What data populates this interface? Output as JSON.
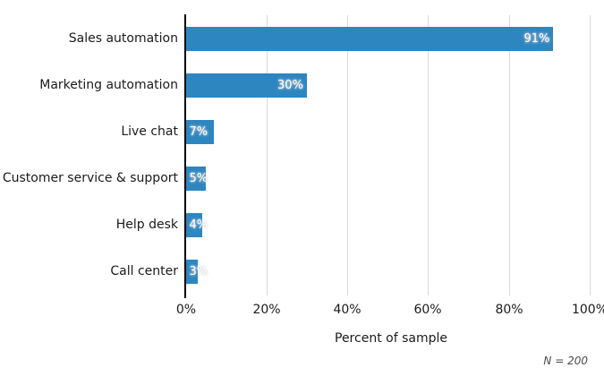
{
  "chart_data": {
    "type": "bar",
    "orientation": "horizontal",
    "title": "",
    "categories": [
      "Sales automation",
      "Marketing automation",
      "Live chat",
      "Customer service & support",
      "Help desk",
      "Call center"
    ],
    "values": [
      91,
      30,
      7,
      5,
      4,
      3
    ],
    "value_labels": [
      "91%",
      "30%",
      "7%",
      "5%",
      "4%",
      "3%"
    ],
    "xlabel": "Percent of sample",
    "ylabel": "",
    "xlim": [
      0,
      100
    ],
    "x_ticks": [
      0,
      20,
      40,
      60,
      80,
      100
    ],
    "x_tick_labels": [
      "0%",
      "20%",
      "40%",
      "60%",
      "80%",
      "100%"
    ],
    "grid": "vertical-only",
    "legend": "none",
    "note": "N = 200",
    "colors": {
      "bar": "#2e86c1",
      "gridline": "#d9d9d9",
      "axis_line": "#000000",
      "text": "#1a1a1a",
      "value_label_text": "#ffffff",
      "note_text": "#4a4a4a",
      "background": "#ffffff"
    }
  }
}
